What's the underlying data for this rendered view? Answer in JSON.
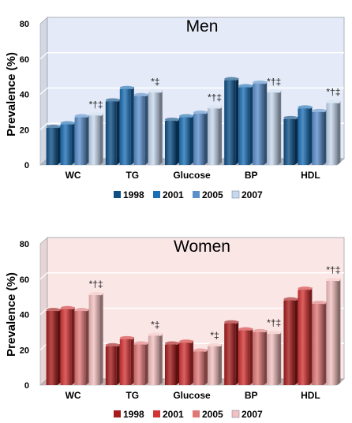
{
  "chart_data": [
    {
      "type": "bar",
      "title": "Men",
      "ylabel": "Prevalence (%)",
      "ylim": [
        0,
        80
      ],
      "yticks": [
        "0",
        "20",
        "40",
        "60",
        "80"
      ],
      "categories": [
        "WC",
        "TG",
        "Glucose",
        "BP",
        "HDL"
      ],
      "annotations": [
        "*†‡",
        "*‡",
        "*†‡",
        "*†‡",
        "*†‡"
      ],
      "series": [
        {
          "name": "1998",
          "values": [
            21,
            36,
            25,
            48,
            26
          ]
        },
        {
          "name": "2001",
          "values": [
            23,
            43,
            27,
            44,
            32
          ]
        },
        {
          "name": "2005",
          "values": [
            27,
            39,
            29,
            46,
            30
          ]
        },
        {
          "name": "2007",
          "values": [
            28,
            41,
            32,
            41,
            35
          ]
        }
      ],
      "colors": {
        "panel_bg": "#e4eaf7",
        "series": [
          "#0e4f86",
          "#1d6fb4",
          "#5b8fcc",
          "#c6d8ee"
        ]
      },
      "grid": true,
      "legend_position": "bottom"
    },
    {
      "type": "bar",
      "title": "Women",
      "ylabel": "Prevalence (%)",
      "ylim": [
        0,
        80
      ],
      "yticks": [
        "0",
        "20",
        "40",
        "60",
        "80"
      ],
      "categories": [
        "WC",
        "TG",
        "Glucose",
        "BP",
        "HDL"
      ],
      "annotations": [
        "*†‡",
        "*‡",
        "*‡",
        "*†‡",
        "*†‡"
      ],
      "series": [
        {
          "name": "1998",
          "values": [
            42,
            22,
            23,
            35,
            48
          ]
        },
        {
          "name": "2001",
          "values": [
            43,
            26,
            24,
            31,
            54
          ]
        },
        {
          "name": "2005",
          "values": [
            42,
            23,
            19,
            30,
            46
          ]
        },
        {
          "name": "2007",
          "values": [
            51,
            28,
            22,
            29,
            59
          ]
        }
      ],
      "colors": {
        "panel_bg": "#fbe6e6",
        "series": [
          "#a51c1c",
          "#d23434",
          "#e07878",
          "#f4c0c0"
        ]
      },
      "grid": true,
      "legend_position": "bottom"
    }
  ]
}
